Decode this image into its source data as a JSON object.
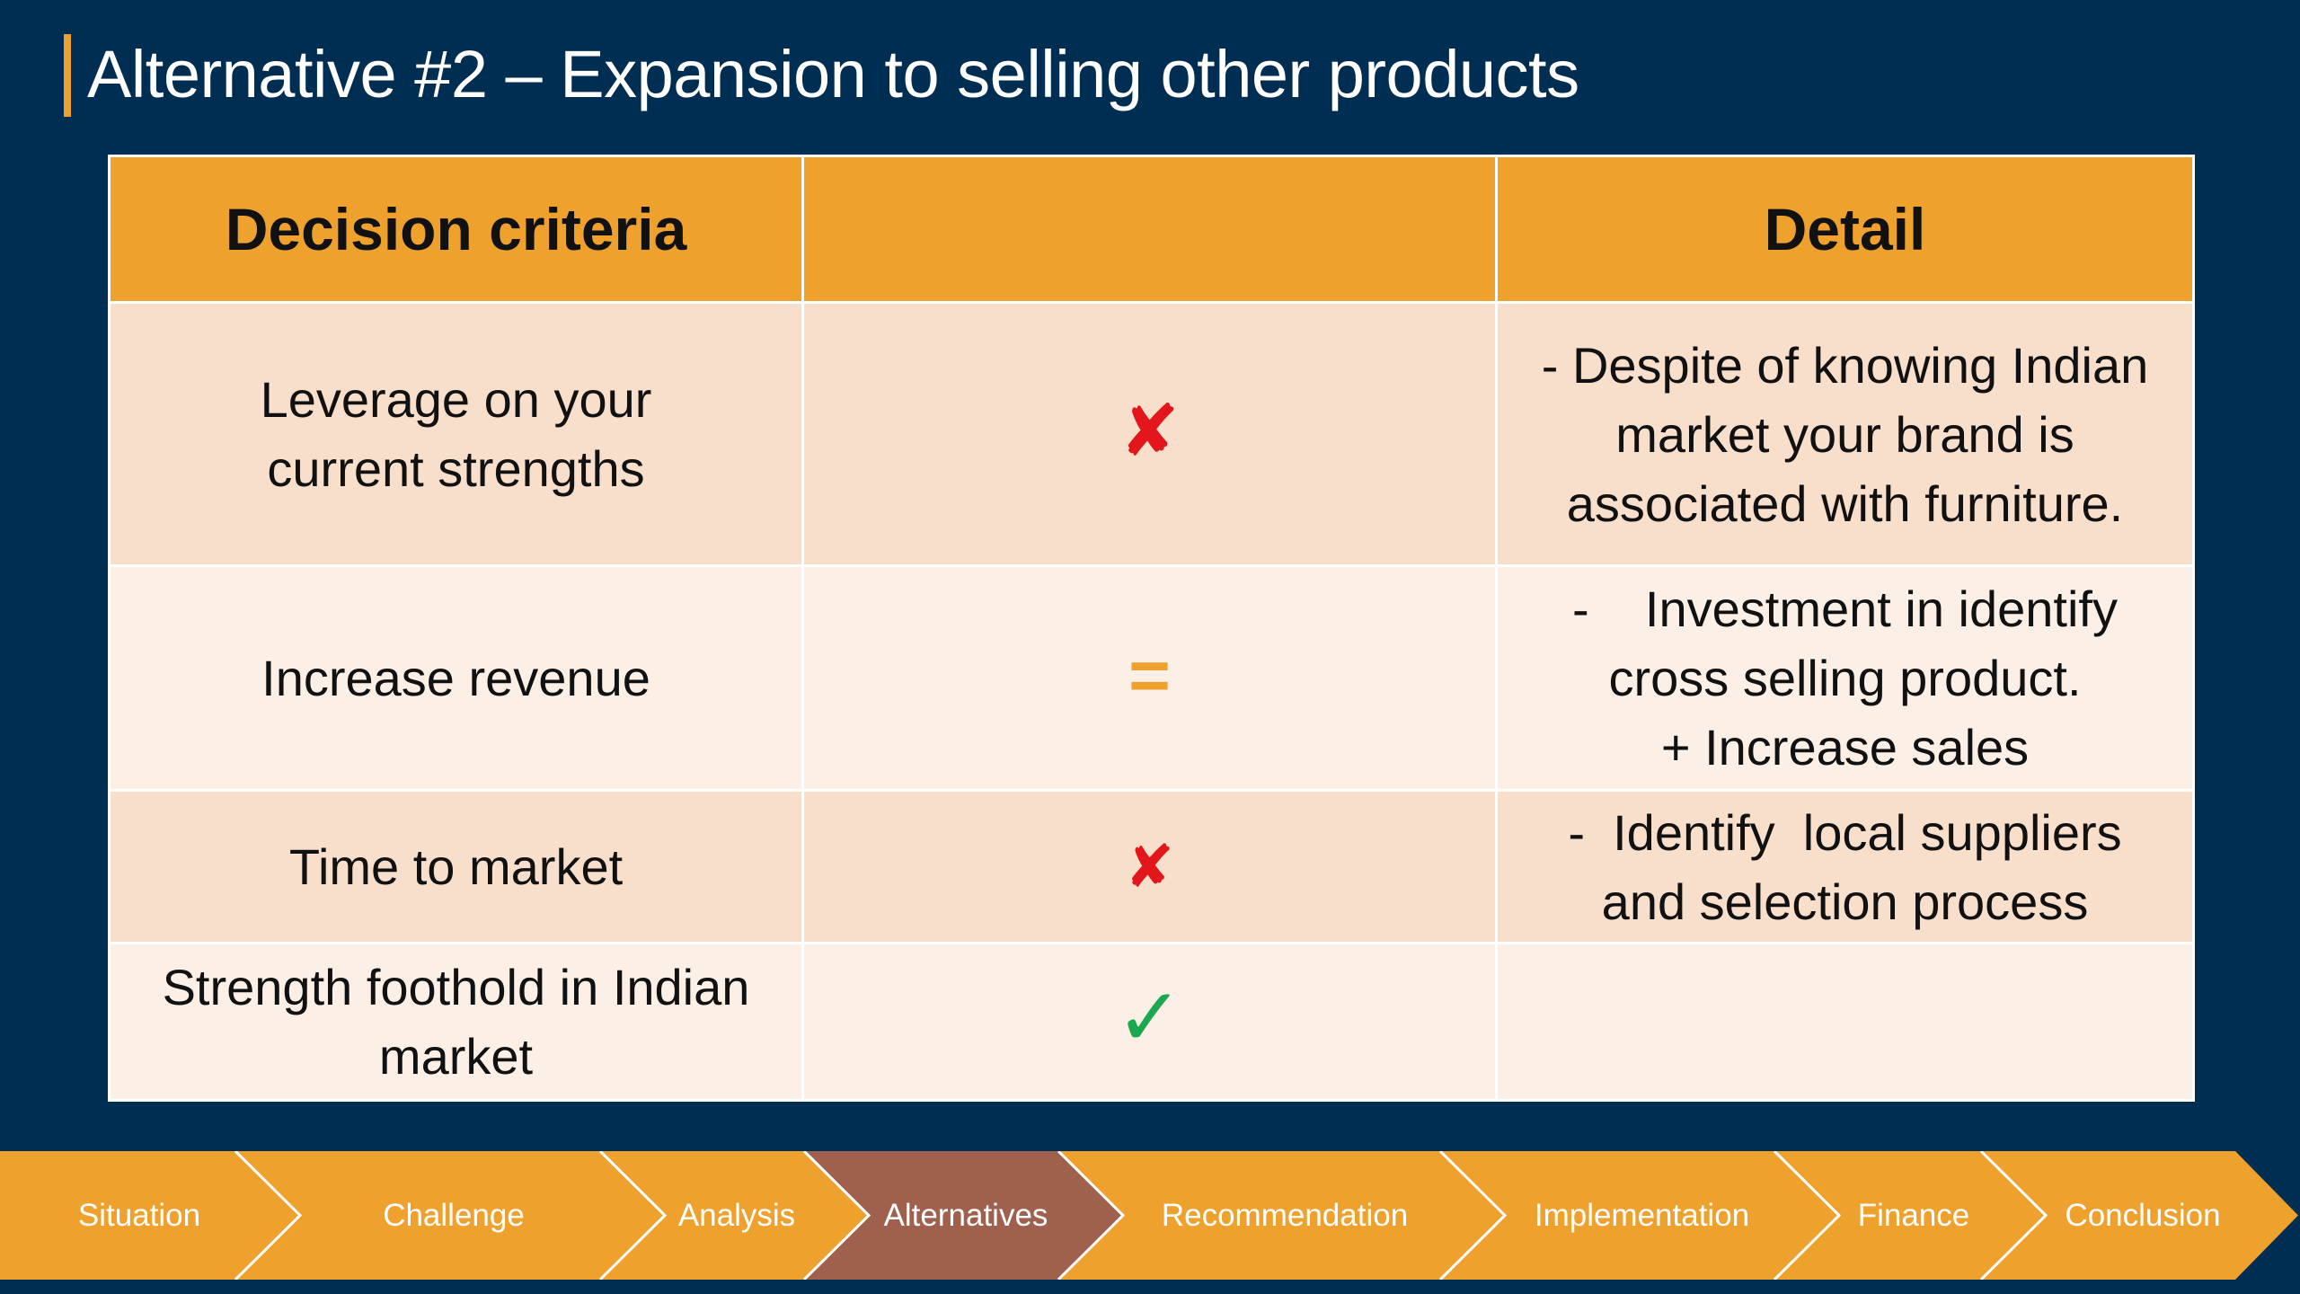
{
  "slide": {
    "title": "Alternative #2 – Expansion to selling other products"
  },
  "table": {
    "headers": [
      "Decision criteria",
      "",
      "Detail"
    ],
    "rows": [
      {
        "criterion": "Leverage on your current strengths",
        "mark": "✘",
        "mark_type": "cross",
        "detail": [
          "- Despite of knowing Indian",
          "market your brand is",
          "associated with furniture."
        ]
      },
      {
        "criterion": "Increase revenue",
        "mark": "=",
        "mark_type": "equal",
        "detail": [
          "-    Investment in identify",
          "cross selling product.",
          "+ Increase sales"
        ]
      },
      {
        "criterion": "Time to market",
        "mark": "✘",
        "mark_type": "cross",
        "detail": [
          "-  Identify  local suppliers",
          "and selection process"
        ]
      },
      {
        "criterion": "Strength foothold in Indian market",
        "mark": "✓",
        "mark_type": "check",
        "detail": []
      }
    ]
  },
  "nav": {
    "items": [
      "Situation",
      "Challenge",
      "Analysis",
      "Alternatives",
      "Recommendation",
      "Implementation",
      "Finance",
      "Conclusion"
    ],
    "active": "Alternatives"
  },
  "colors": {
    "background": "#002d52",
    "accent": "#efa12e",
    "nav_active": "#a0604e",
    "cross": "#e3161b",
    "check": "#1aa850"
  }
}
